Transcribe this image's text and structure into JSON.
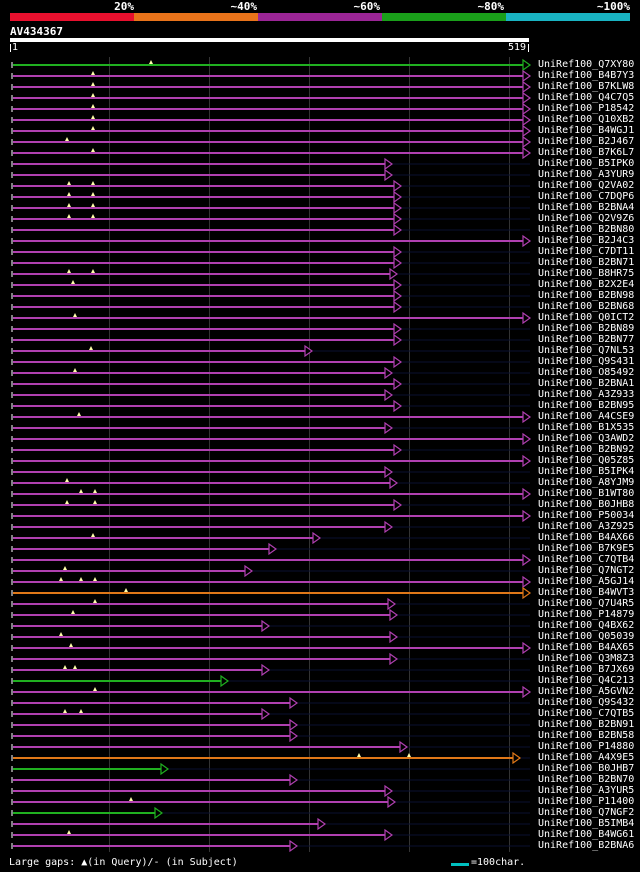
{
  "identity_scale": {
    "labels": [
      "20%",
      "~40%",
      "~60%",
      "~80%",
      "~100%"
    ],
    "colors": [
      "#e8102e",
      "#e8731a",
      "#9b2596",
      "#1a9f1a",
      "#19b3c2"
    ]
  },
  "query": {
    "id": "AV434367",
    "start": "1",
    "end": "519",
    "length": 519
  },
  "footer": {
    "gaps_prefix": "Large gaps: ",
    "query_gap_text": "(in Query)/",
    "subject_gap_symbol": "-",
    "subject_gap_text": " (in Subject)",
    "scale_text": "=100char."
  },
  "colors": {
    "purple": "#b040b0",
    "green": "#20b020",
    "orange": "#e07818",
    "track": "#0a1030"
  },
  "hits": [
    {
      "label": "UniRef100_Q7XY80",
      "color": "green",
      "end": 519,
      "gaps": [
        140
      ]
    },
    {
      "label": "UniRef100_B4B7Y3",
      "color": "purple",
      "end": 519,
      "gaps": [
        82
      ]
    },
    {
      "label": "UniRef100_B7KLW8",
      "color": "purple",
      "end": 519,
      "gaps": [
        82
      ]
    },
    {
      "label": "UniRef100_Q4C7Q5",
      "color": "purple",
      "end": 519,
      "gaps": [
        82
      ]
    },
    {
      "label": "UniRef100_P18542",
      "color": "purple",
      "end": 519,
      "gaps": [
        82
      ]
    },
    {
      "label": "UniRef100_Q10XB2",
      "color": "purple",
      "end": 519,
      "gaps": [
        82
      ]
    },
    {
      "label": "UniRef100_B4WGJ1",
      "color": "purple",
      "end": 519,
      "gaps": [
        82
      ]
    },
    {
      "label": "UniRef100_B2J467",
      "color": "purple",
      "end": 519,
      "gaps": [
        56
      ]
    },
    {
      "label": "UniRef100_B7K6L7",
      "color": "purple",
      "end": 519,
      "gaps": [
        82
      ]
    },
    {
      "label": "UniRef100_B5IPK0",
      "color": "purple",
      "end": 381,
      "gaps": []
    },
    {
      "label": "UniRef100_A3YUR9",
      "color": "purple",
      "end": 381,
      "gaps": []
    },
    {
      "label": "UniRef100_Q2VA02",
      "color": "purple",
      "end": 390,
      "gaps": [
        58,
        82
      ]
    },
    {
      "label": "UniRef100_C7DQP6",
      "color": "purple",
      "end": 390,
      "gaps": [
        58,
        82
      ]
    },
    {
      "label": "UniRef100_B2BNA4",
      "color": "purple",
      "end": 390,
      "gaps": [
        58,
        82
      ]
    },
    {
      "label": "UniRef100_Q2V9Z6",
      "color": "purple",
      "end": 390,
      "gaps": [
        58,
        82
      ]
    },
    {
      "label": "UniRef100_B2BN80",
      "color": "purple",
      "end": 390,
      "gaps": []
    },
    {
      "label": "UniRef100_B2J4C3",
      "color": "purple",
      "end": 519,
      "gaps": []
    },
    {
      "label": "UniRef100_C7DT11",
      "color": "purple",
      "end": 390,
      "gaps": []
    },
    {
      "label": "UniRef100_B2BN71",
      "color": "purple",
      "end": 390,
      "gaps": []
    },
    {
      "label": "UniRef100_B8HR75",
      "color": "purple",
      "end": 386,
      "gaps": [
        58,
        82
      ]
    },
    {
      "label": "UniRef100_B2X2E4",
      "color": "purple",
      "end": 390,
      "gaps": [
        62
      ]
    },
    {
      "label": "UniRef100_B2BN98",
      "color": "purple",
      "end": 390,
      "gaps": []
    },
    {
      "label": "UniRef100_B2BN68",
      "color": "purple",
      "end": 390,
      "gaps": []
    },
    {
      "label": "UniRef100_Q0ICT2",
      "color": "purple",
      "end": 519,
      "gaps": [
        64
      ]
    },
    {
      "label": "UniRef100_B2BN89",
      "color": "purple",
      "end": 390,
      "gaps": []
    },
    {
      "label": "UniRef100_B2BN77",
      "color": "purple",
      "end": 390,
      "gaps": []
    },
    {
      "label": "UniRef100_Q7NL53",
      "color": "purple",
      "end": 301,
      "gaps": [
        80
      ]
    },
    {
      "label": "UniRef100_Q9S431",
      "color": "purple",
      "end": 390,
      "gaps": []
    },
    {
      "label": "UniRef100_O85492",
      "color": "purple",
      "end": 381,
      "gaps": [
        64
      ]
    },
    {
      "label": "UniRef100_B2BNA1",
      "color": "purple",
      "end": 390,
      "gaps": []
    },
    {
      "label": "UniRef100_A3Z933",
      "color": "purple",
      "end": 381,
      "gaps": []
    },
    {
      "label": "UniRef100_B2BN95",
      "color": "purple",
      "end": 390,
      "gaps": []
    },
    {
      "label": "UniRef100_A4CSE9",
      "color": "purple",
      "end": 519,
      "gaps": [
        68
      ]
    },
    {
      "label": "UniRef100_B1X535",
      "color": "purple",
      "end": 381,
      "gaps": []
    },
    {
      "label": "UniRef100_Q3AWD2",
      "color": "purple",
      "end": 519,
      "gaps": []
    },
    {
      "label": "UniRef100_B2BN92",
      "color": "purple",
      "end": 390,
      "gaps": []
    },
    {
      "label": "UniRef100_Q05Z85",
      "color": "purple",
      "end": 519,
      "gaps": []
    },
    {
      "label": "UniRef100_B5IPK4",
      "color": "purple",
      "end": 381,
      "gaps": []
    },
    {
      "label": "UniRef100_A8YJM9",
      "color": "purple",
      "end": 386,
      "gaps": [
        56
      ]
    },
    {
      "label": "UniRef100_B1WT80",
      "color": "purple",
      "end": 519,
      "gaps": [
        70,
        84
      ]
    },
    {
      "label": "UniRef100_B0JHB8",
      "color": "purple",
      "end": 390,
      "gaps": [
        56,
        84
      ]
    },
    {
      "label": "UniRef100_P50034",
      "color": "purple",
      "end": 519,
      "gaps": []
    },
    {
      "label": "UniRef100_A3Z925",
      "color": "purple",
      "end": 381,
      "gaps": []
    },
    {
      "label": "UniRef100_B4AX66",
      "color": "purple",
      "end": 309,
      "gaps": [
        82
      ]
    },
    {
      "label": "UniRef100_B7K9E5",
      "color": "purple",
      "end": 265,
      "gaps": []
    },
    {
      "label": "UniRef100_C7QTB4",
      "color": "purple",
      "end": 519,
      "gaps": []
    },
    {
      "label": "UniRef100_Q7NGT2",
      "color": "purple",
      "end": 241,
      "gaps": [
        54
      ]
    },
    {
      "label": "UniRef100_A5GJ14",
      "color": "purple",
      "end": 519,
      "gaps": [
        50,
        70,
        84
      ]
    },
    {
      "label": "UniRef100_B4WVT3",
      "color": "orange",
      "end": 519,
      "gaps": [
        115
      ]
    },
    {
      "label": "UniRef100_Q7U4R5",
      "color": "purple",
      "end": 384,
      "gaps": [
        84
      ]
    },
    {
      "label": "UniRef100_P14879",
      "color": "purple",
      "end": 386,
      "gaps": [
        62
      ]
    },
    {
      "label": "UniRef100_Q4BX62",
      "color": "purple",
      "end": 258,
      "gaps": []
    },
    {
      "label": "UniRef100_Q05039",
      "color": "purple",
      "end": 386,
      "gaps": [
        50
      ]
    },
    {
      "label": "UniRef100_B4AX65",
      "color": "purple",
      "end": 519,
      "gaps": [
        60
      ]
    },
    {
      "label": "UniRef100_Q3M8Z3",
      "color": "purple",
      "end": 386,
      "gaps": []
    },
    {
      "label": "UniRef100_B7JX69",
      "color": "purple",
      "end": 258,
      "gaps": [
        54,
        64
      ]
    },
    {
      "label": "UniRef100_Q4C213",
      "color": "green",
      "end": 217,
      "gaps": []
    },
    {
      "label": "UniRef100_A5GVN2",
      "color": "purple",
      "end": 519,
      "gaps": [
        84
      ]
    },
    {
      "label": "UniRef100_Q9S432",
      "color": "purple",
      "end": 286,
      "gaps": []
    },
    {
      "label": "UniRef100_C7QTB5",
      "color": "purple",
      "end": 258,
      "gaps": [
        54,
        70
      ]
    },
    {
      "label": "UniRef100_B2BN91",
      "color": "purple",
      "end": 286,
      "gaps": []
    },
    {
      "label": "UniRef100_B2BN58",
      "color": "purple",
      "end": 286,
      "gaps": []
    },
    {
      "label": "UniRef100_P14880",
      "color": "purple",
      "end": 396,
      "gaps": []
    },
    {
      "label": "UniRef100_A4X9E5",
      "color": "orange",
      "end": 509,
      "gaps": [
        348,
        398
      ]
    },
    {
      "label": "UniRef100_B0JHB7",
      "color": "green",
      "end": 157,
      "gaps": []
    },
    {
      "label": "UniRef100_B2BN70",
      "color": "purple",
      "end": 286,
      "gaps": []
    },
    {
      "label": "UniRef100_A3YUR5",
      "color": "purple",
      "end": 381,
      "gaps": []
    },
    {
      "label": "UniRef100_P11400",
      "color": "purple",
      "end": 384,
      "gaps": [
        120
      ]
    },
    {
      "label": "UniRef100_Q7NGF2",
      "color": "green",
      "end": 151,
      "gaps": []
    },
    {
      "label": "UniRef100_B5IMB4",
      "color": "purple",
      "end": 314,
      "gaps": []
    },
    {
      "label": "UniRef100_B4WG61",
      "color": "purple",
      "end": 381,
      "gaps": [
        58
      ]
    },
    {
      "label": "UniRef100_B2BNA6",
      "color": "purple",
      "end": 286,
      "gaps": []
    }
  ]
}
